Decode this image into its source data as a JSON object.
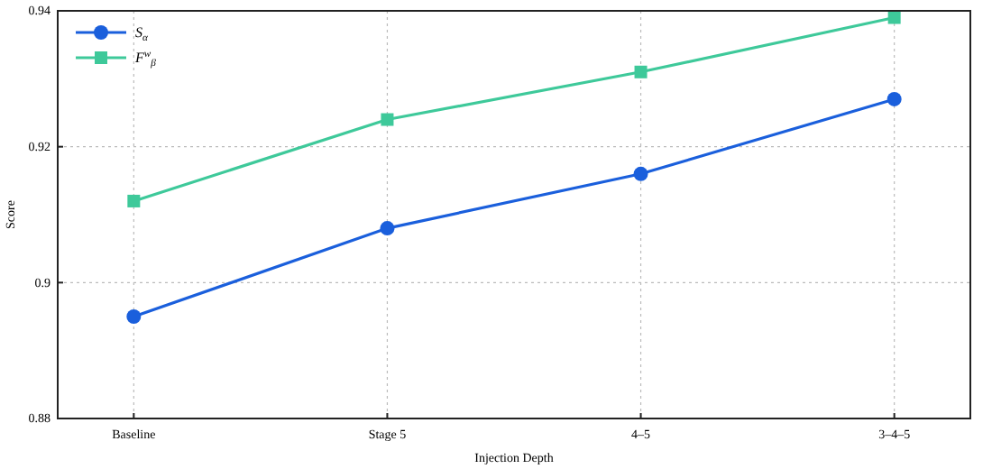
{
  "chart_data": {
    "type": "line",
    "xlabel": "Injection Depth",
    "ylabel": "Score",
    "categories": [
      "Baseline",
      "Stage 5",
      "4–5",
      "3–4–5"
    ],
    "series": [
      {
        "name": "S$_{α}$",
        "color": "#1a5fdc",
        "values": [
          0.895,
          0.908,
          0.916,
          0.927
        ],
        "marker": "circle"
      },
      {
        "name": "F$^{w}$$_{β}$",
        "color": "#3ec99a",
        "values": [
          0.912,
          0.924,
          0.931,
          0.939
        ],
        "marker": "square"
      }
    ],
    "ylim": [
      0.88,
      0.94
    ],
    "yticks": [
      0.88,
      0.9,
      0.92,
      0.94
    ],
    "grid": true,
    "legend": "top left",
    "line_style": "solid"
  }
}
